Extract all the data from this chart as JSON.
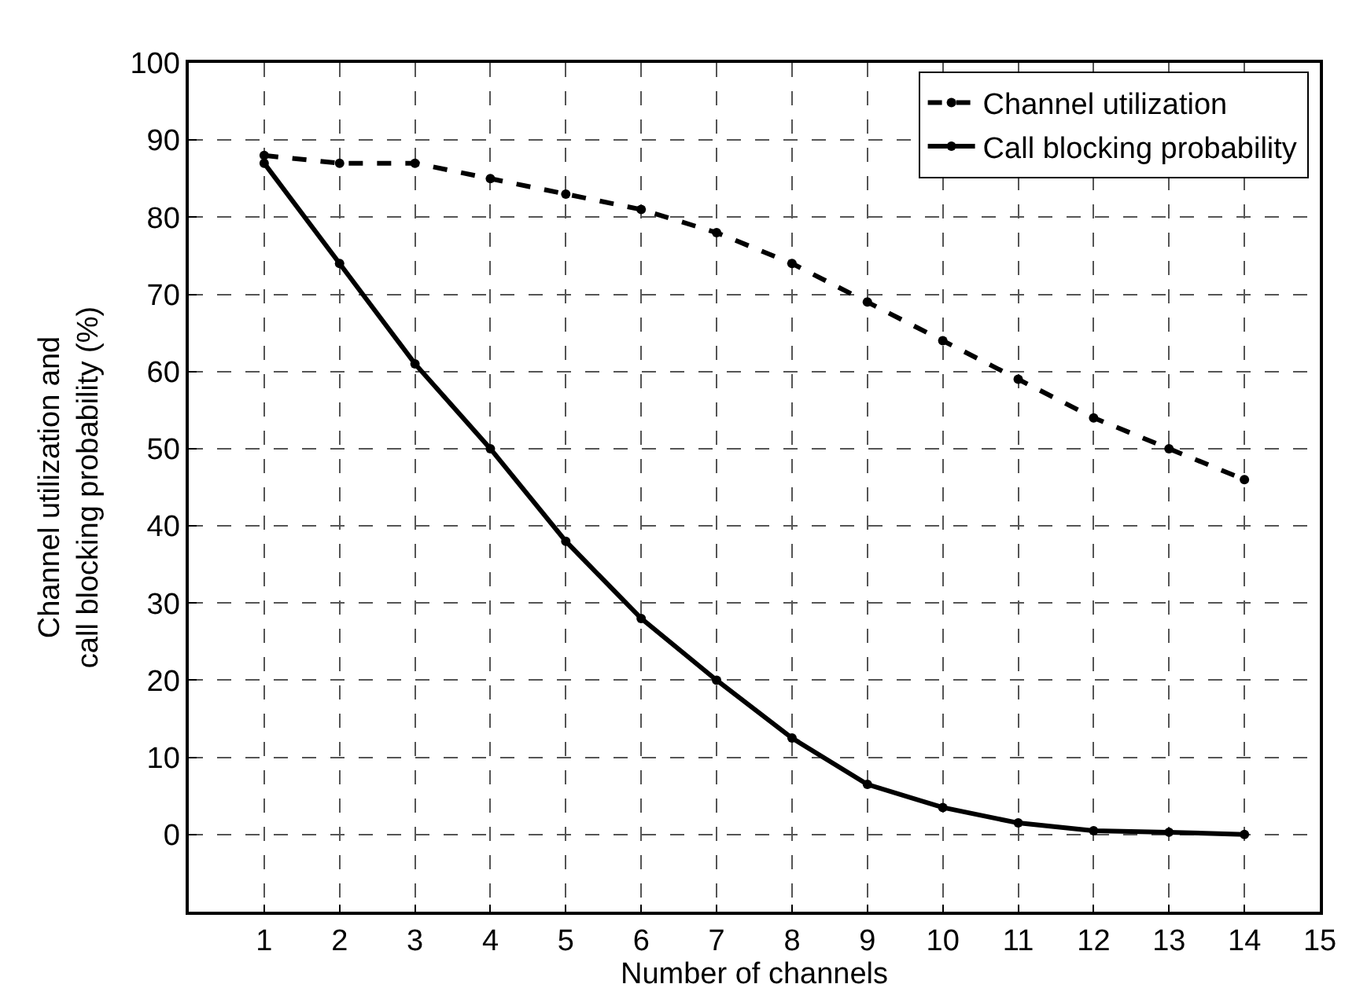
{
  "chart_data": {
    "type": "line",
    "xlabel": "Number of channels",
    "ylabel": "Channel utilization and\ncall blocking probability (%)",
    "x": [
      1,
      2,
      3,
      4,
      5,
      6,
      7,
      8,
      9,
      10,
      11,
      12,
      13,
      14
    ],
    "series": [
      {
        "name": "Channel utilization",
        "color": "#000000",
        "line_style": "dashed",
        "values": [
          88,
          87,
          87,
          85,
          83,
          81,
          78,
          74,
          69,
          64,
          59,
          54,
          50,
          46
        ]
      },
      {
        "name": "Call blocking probability",
        "color": "#000000",
        "line_style": "solid",
        "values": [
          87,
          74,
          61,
          50,
          38,
          28,
          20,
          12.5,
          6.5,
          3.5,
          1.5,
          0.5,
          0.3,
          0
        ]
      }
    ],
    "xlim": [
      0,
      15
    ],
    "xticks": [
      1,
      2,
      3,
      4,
      5,
      6,
      7,
      8,
      9,
      10,
      11,
      12,
      13,
      14,
      15
    ],
    "ylim": [
      -10,
      100
    ],
    "yticks": [
      0,
      10,
      20,
      30,
      40,
      50,
      60,
      70,
      80,
      90,
      100
    ],
    "grid": true,
    "legend": "top right",
    "marker": "circle"
  }
}
